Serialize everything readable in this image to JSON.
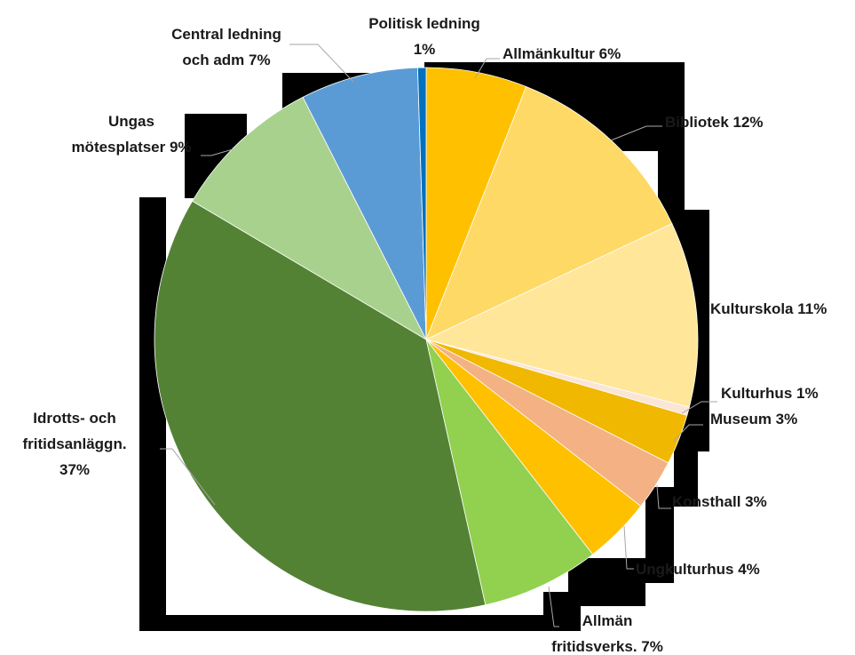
{
  "chart_data": {
    "type": "pie",
    "title": "",
    "slices": [
      {
        "name": "Allmänkultur",
        "value": 6,
        "label": "Allmänkultur 6%",
        "color": "#FFC000"
      },
      {
        "name": "Bibliotek",
        "value": 12,
        "label": "Bibliotek 12%",
        "color": "#FFD966"
      },
      {
        "name": "Kulturskola",
        "value": 11,
        "label": "Kulturskola 11%",
        "color": "#FFE699"
      },
      {
        "name": "Kulturhus",
        "value": 0.5,
        "label": "Kulturhus 1%",
        "color": "#FBE5D6"
      },
      {
        "name": "Museum",
        "value": 3,
        "label": "Museum 3%",
        "color": "#F0B800"
      },
      {
        "name": "Konsthall",
        "value": 3,
        "label": "Konsthall 3%",
        "color": "#F4B183"
      },
      {
        "name": "Ungkulturhus",
        "value": 4,
        "label": "Ungkulturhus 4%",
        "color": "#FFC000"
      },
      {
        "name": "Allmän fritidsverks.",
        "value": 7,
        "label": "Allmän fritidsverks. 7%",
        "color": "#92D050"
      },
      {
        "name": "Idrotts- och fritidsanläggn.",
        "value": 37,
        "label": "Idrotts- och fritidsanläggn. 37%",
        "color": "#548235"
      },
      {
        "name": "Ungas mötesplatser",
        "value": 9,
        "label": "Ungas mötesplatser 9%",
        "color": "#A9D18E"
      },
      {
        "name": "Central ledning och adm",
        "value": 7,
        "label": "Central ledning och adm 7%",
        "color": "#5B9BD5"
      },
      {
        "name": "Politisk ledning",
        "value": 0.5,
        "label": "Politisk ledning 1%",
        "color": "#0070C0"
      }
    ]
  }
}
